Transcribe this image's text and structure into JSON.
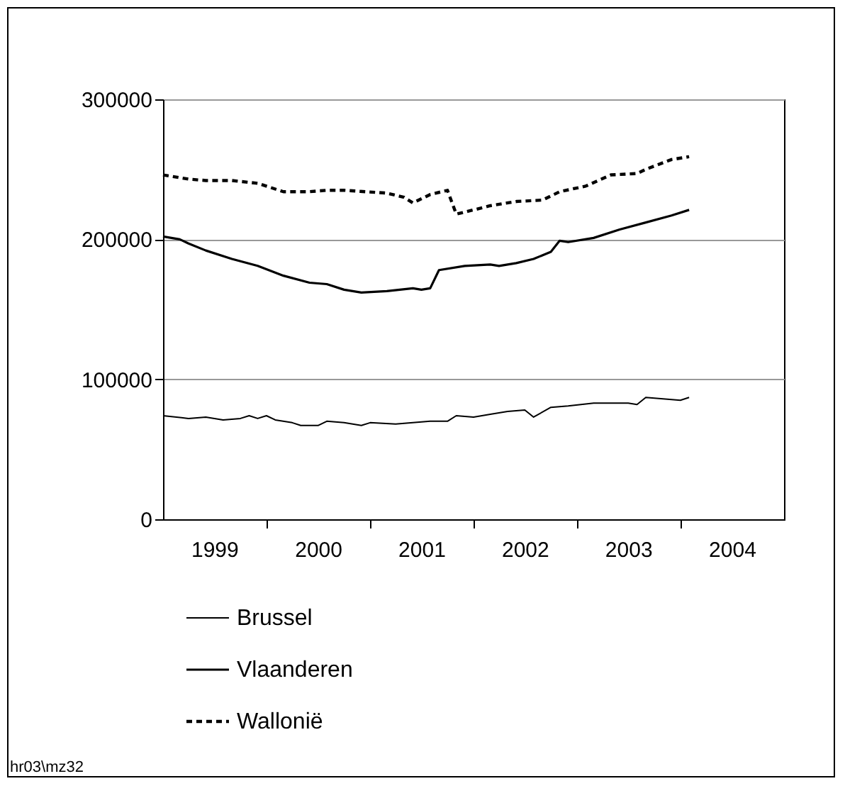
{
  "chart_data": {
    "type": "line",
    "xlim": [
      "1999-01",
      "2005-01"
    ],
    "ylim": [
      0,
      300000
    ],
    "yticks": [
      0,
      100000,
      200000,
      300000
    ],
    "xticks": [
      {
        "value": "2000-01",
        "label": null
      },
      {
        "value": "2001-01",
        "label": null
      },
      {
        "value": "2002-01",
        "label": null
      },
      {
        "value": "2003-01",
        "label": null
      },
      {
        "value": "2004-01",
        "label": null
      },
      {
        "value": "1999-07",
        "label": "1999"
      },
      {
        "value": "2000-07",
        "label": "2000"
      },
      {
        "value": "2001-07",
        "label": "2001"
      },
      {
        "value": "2002-07",
        "label": "2002"
      },
      {
        "value": "2003-07",
        "label": "2003"
      },
      {
        "value": "2004-07",
        "label": "2004"
      }
    ],
    "grid": "y",
    "legend": "bottom left",
    "annotations": [
      "hr03\\mz32"
    ],
    "series": [
      {
        "name": "Brussel",
        "color": "#000000",
        "line_style": "solid",
        "x": [
          "1999-01",
          "1999-04",
          "1999-06",
          "1999-08",
          "1999-10",
          "1999-11",
          "1999-12",
          "2000-01",
          "2000-02",
          "2000-04",
          "2000-05",
          "2000-07",
          "2000-08",
          "2000-10",
          "2000-12",
          "2001-01",
          "2001-04",
          "2001-06",
          "2001-08",
          "2001-10",
          "2001-11",
          "2002-01",
          "2002-03",
          "2002-05",
          "2002-07",
          "2002-08",
          "2002-10",
          "2002-12",
          "2003-03",
          "2003-07",
          "2003-08",
          "2003-09",
          "2003-11",
          "2004-01",
          "2004-02"
        ],
        "values": [
          74000,
          72000,
          73000,
          71000,
          72000,
          74000,
          72000,
          74000,
          71000,
          69000,
          67000,
          67000,
          70000,
          69000,
          67000,
          69000,
          68000,
          69000,
          70000,
          70000,
          74000,
          73000,
          75000,
          77000,
          78000,
          73000,
          80000,
          81000,
          83000,
          83000,
          82000,
          87000,
          86000,
          85000,
          87000
        ]
      },
      {
        "name": "Vlaanderen",
        "color": "#000000",
        "line_style": "solid",
        "x": [
          "1999-01",
          "1999-03",
          "1999-04",
          "1999-06",
          "1999-09",
          "1999-12",
          "2000-03",
          "2000-06",
          "2000-08",
          "2000-10",
          "2000-12",
          "2001-03",
          "2001-06",
          "2001-07",
          "2001-08",
          "2001-09",
          "2001-12",
          "2002-03",
          "2002-04",
          "2002-06",
          "2002-08",
          "2002-10",
          "2002-11",
          "2002-12",
          "2003-03",
          "2003-06",
          "2003-09",
          "2003-12",
          "2004-02"
        ],
        "values": [
          202000,
          200000,
          197000,
          192000,
          186000,
          181000,
          174000,
          169000,
          168000,
          164000,
          162000,
          163000,
          165000,
          164000,
          165000,
          178000,
          181000,
          182000,
          181000,
          183000,
          186000,
          191000,
          199000,
          198000,
          201000,
          207000,
          212000,
          217000,
          221000
        ]
      },
      {
        "name": "Wallonië",
        "color": "#000000",
        "line_style": "dashed",
        "x": [
          "1999-01",
          "1999-04",
          "1999-06",
          "1999-09",
          "1999-12",
          "2000-03",
          "2000-06",
          "2000-08",
          "2000-10",
          "2001-03",
          "2001-05",
          "2001-06",
          "2001-08",
          "2001-10",
          "2001-11",
          "2002-01",
          "2002-03",
          "2002-06",
          "2002-09",
          "2002-11",
          "2003-02",
          "2003-05",
          "2003-08",
          "2003-09",
          "2003-12",
          "2004-02"
        ],
        "values": [
          246000,
          243000,
          242000,
          242000,
          240000,
          234000,
          234000,
          235000,
          235000,
          233000,
          230000,
          226000,
          232000,
          235000,
          218000,
          221000,
          224000,
          227000,
          228000,
          234000,
          238000,
          246000,
          247000,
          250000,
          257000,
          259000
        ]
      }
    ]
  }
}
